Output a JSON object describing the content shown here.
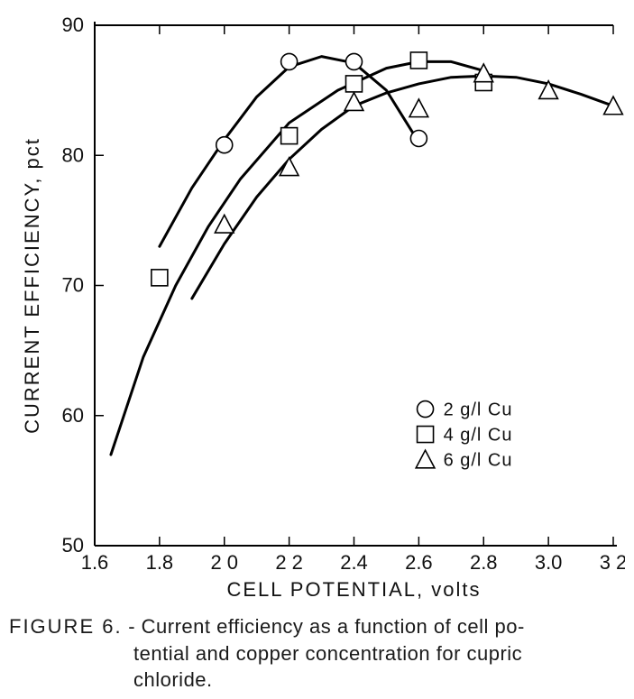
{
  "figure": {
    "type": "scatter-line",
    "background_color": "#ffffff",
    "axis_color": "#000000",
    "curve_color": "#000000",
    "marker_stroke": "#000000",
    "marker_fill": "#ffffff",
    "x": {
      "label": "CELL  POTENTIAL,   volts",
      "min": 1.6,
      "max": 3.2,
      "ticks": [
        1.6,
        1.8,
        2.0,
        2.2,
        2.4,
        2.6,
        2.8,
        3.0,
        3.2
      ],
      "tick_labels": [
        "1.6",
        "1.8",
        "2 0",
        "2 2",
        "2.4",
        "2.6",
        "2.8",
        "3.0",
        "3 2"
      ],
      "label_fontsize": 22,
      "tick_fontsize": 22
    },
    "y": {
      "label": "CURRENT  EFFICIENCY,  pct",
      "min": 50,
      "max": 90,
      "ticks": [
        50,
        60,
        70,
        80,
        90
      ],
      "tick_labels": [
        "50",
        "60",
        "70",
        "80",
        "90"
      ],
      "label_fontsize": 22,
      "tick_fontsize": 22
    },
    "curves": [
      {
        "name": "2 g/l Cu",
        "marker": "circle",
        "path": [
          [
            1.8,
            73.0
          ],
          [
            1.9,
            77.5
          ],
          [
            2.0,
            81.2
          ],
          [
            2.1,
            84.5
          ],
          [
            2.2,
            86.8
          ],
          [
            2.3,
            87.6
          ],
          [
            2.4,
            87.1
          ],
          [
            2.5,
            85.0
          ],
          [
            2.6,
            81.0
          ]
        ]
      },
      {
        "name": "4 g/l Cu",
        "marker": "square",
        "path": [
          [
            1.65,
            57.0
          ],
          [
            1.75,
            64.5
          ],
          [
            1.85,
            70.0
          ],
          [
            1.95,
            74.5
          ],
          [
            2.05,
            78.2
          ],
          [
            2.2,
            82.5
          ],
          [
            2.35,
            85.0
          ],
          [
            2.5,
            86.7
          ],
          [
            2.6,
            87.2
          ],
          [
            2.7,
            87.2
          ],
          [
            2.8,
            86.5
          ]
        ]
      },
      {
        "name": "6 g/l Cu",
        "marker": "triangle",
        "path": [
          [
            1.9,
            69.0
          ],
          [
            2.0,
            73.2
          ],
          [
            2.1,
            76.8
          ],
          [
            2.2,
            79.7
          ],
          [
            2.3,
            82.0
          ],
          [
            2.4,
            83.8
          ],
          [
            2.5,
            84.8
          ],
          [
            2.6,
            85.5
          ],
          [
            2.7,
            86.0
          ],
          [
            2.8,
            86.1
          ],
          [
            2.9,
            86.0
          ],
          [
            3.0,
            85.5
          ],
          [
            3.1,
            84.7
          ],
          [
            3.2,
            83.8
          ]
        ]
      }
    ],
    "series": [
      {
        "name": "2 g/l Cu",
        "marker": "circle",
        "points": [
          [
            2.0,
            80.8
          ],
          [
            2.2,
            87.2
          ],
          [
            2.4,
            87.2
          ],
          [
            2.6,
            81.3
          ]
        ]
      },
      {
        "name": "4 g/l Cu",
        "marker": "square",
        "points": [
          [
            1.8,
            70.6
          ],
          [
            2.2,
            81.5
          ],
          [
            2.4,
            85.5
          ],
          [
            2.6,
            87.3
          ],
          [
            2.8,
            85.6
          ]
        ]
      },
      {
        "name": "6 g/l Cu",
        "marker": "triangle",
        "points": [
          [
            2.0,
            74.7
          ],
          [
            2.2,
            79.1
          ],
          [
            2.4,
            84.1
          ],
          [
            2.6,
            83.6
          ],
          [
            2.8,
            86.3
          ],
          [
            3.0,
            85.0
          ],
          [
            3.2,
            83.8
          ]
        ]
      }
    ],
    "legend": {
      "fontsize": 20,
      "items": [
        {
          "marker": "circle",
          "label": "2  g/l  Cu"
        },
        {
          "marker": "square",
          "label": "4  g/l  Cu"
        },
        {
          "marker": "triangle",
          "label": "6  g/l  Cu"
        }
      ]
    },
    "marker_size": 9,
    "curve_width": 3.0,
    "axis_width": 2.0
  },
  "caption": {
    "label": "FIGURE 6.",
    "line1": "Current efficiency as a function of cell po-",
    "line2": "tential and copper  concentration for cupric",
    "line3": "chloride."
  }
}
